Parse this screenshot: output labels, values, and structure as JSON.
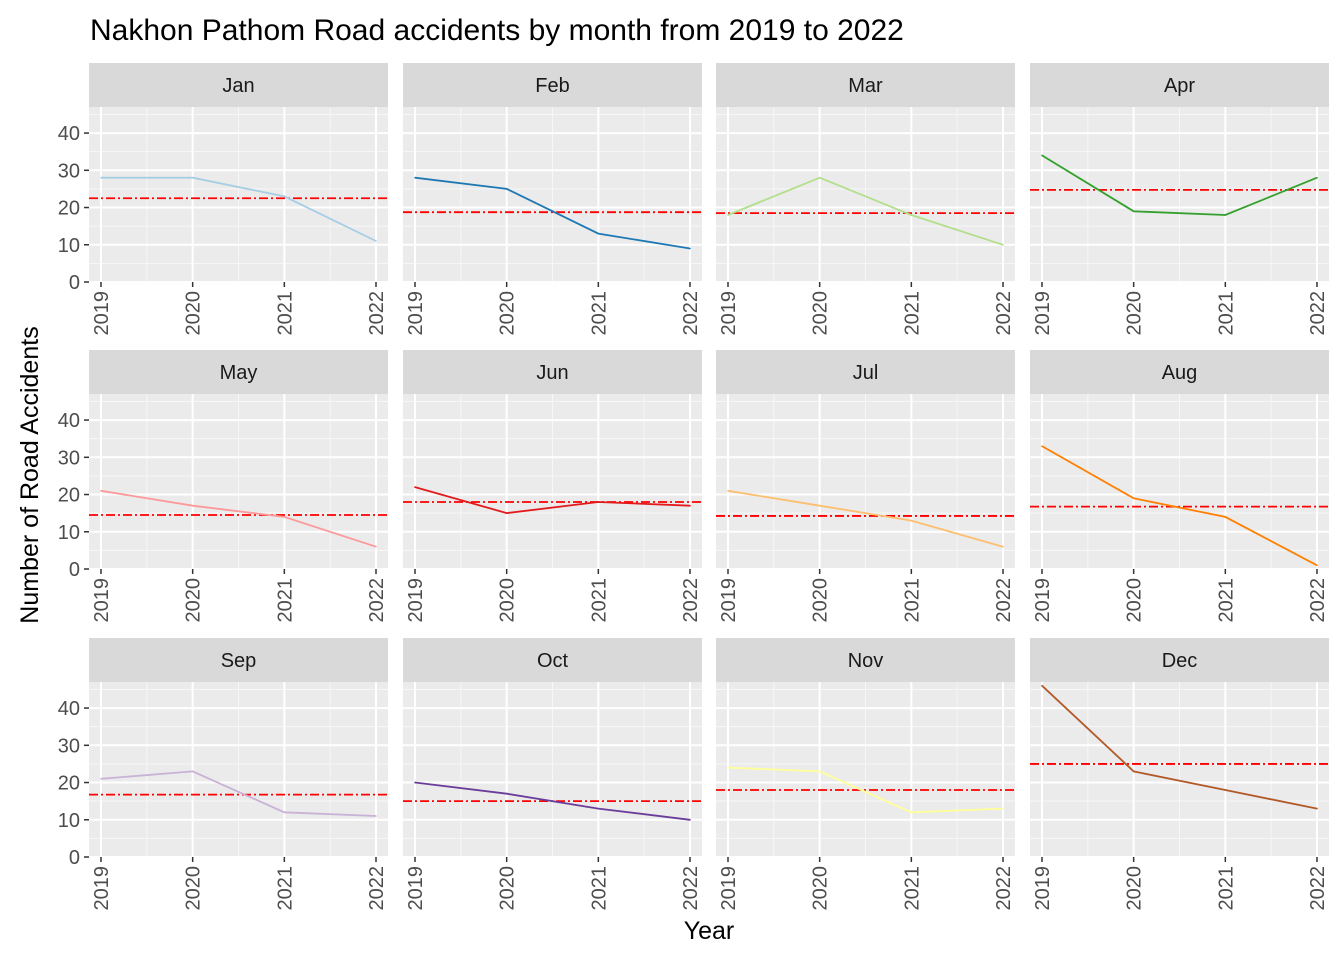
{
  "chart_data": {
    "type": "line",
    "title": "Nakhon Pathom Road accidents by month from 2019 to 2022",
    "xlabel": "Year",
    "ylabel": "Number of Road Accidents",
    "x": [
      "2019",
      "2020",
      "2021",
      "2022"
    ],
    "y_ticks": [
      0,
      10,
      20,
      30,
      40
    ],
    "ylim": [
      0,
      47
    ],
    "grid": true,
    "reference_line": {
      "style": "dash-dot",
      "color": "#ff0000",
      "meaning": "mean per month"
    },
    "facets": [
      {
        "name": "Jan",
        "color": "#a6cee3",
        "values": [
          28,
          28,
          23,
          11
        ],
        "mean": 22.5
      },
      {
        "name": "Feb",
        "color": "#1f78b4",
        "values": [
          28,
          25,
          13,
          9
        ],
        "mean": 18.75
      },
      {
        "name": "Mar",
        "color": "#b2df8a",
        "values": [
          18,
          28,
          18,
          10
        ],
        "mean": 18.5
      },
      {
        "name": "Apr",
        "color": "#33a02c",
        "values": [
          34,
          19,
          18,
          28
        ],
        "mean": 24.75
      },
      {
        "name": "May",
        "color": "#fb9a99",
        "values": [
          21,
          17,
          14,
          6
        ],
        "mean": 14.5
      },
      {
        "name": "Jun",
        "color": "#e31a1c",
        "values": [
          22,
          15,
          18,
          17
        ],
        "mean": 18
      },
      {
        "name": "Jul",
        "color": "#fdbf6f",
        "values": [
          21,
          17,
          13,
          6
        ],
        "mean": 14.25
      },
      {
        "name": "Aug",
        "color": "#ff7f00",
        "values": [
          33,
          19,
          14,
          1
        ],
        "mean": 16.75
      },
      {
        "name": "Sep",
        "color": "#cab2d6",
        "values": [
          21,
          23,
          12,
          11
        ],
        "mean": 16.75
      },
      {
        "name": "Oct",
        "color": "#6a3d9a",
        "values": [
          20,
          17,
          13,
          10
        ],
        "mean": 15
      },
      {
        "name": "Nov",
        "color": "#ffff99",
        "values": [
          24,
          23,
          12,
          13
        ],
        "mean": 18
      },
      {
        "name": "Dec",
        "color": "#b15928",
        "values": [
          46,
          23,
          18,
          13
        ],
        "mean": 25
      }
    ]
  }
}
